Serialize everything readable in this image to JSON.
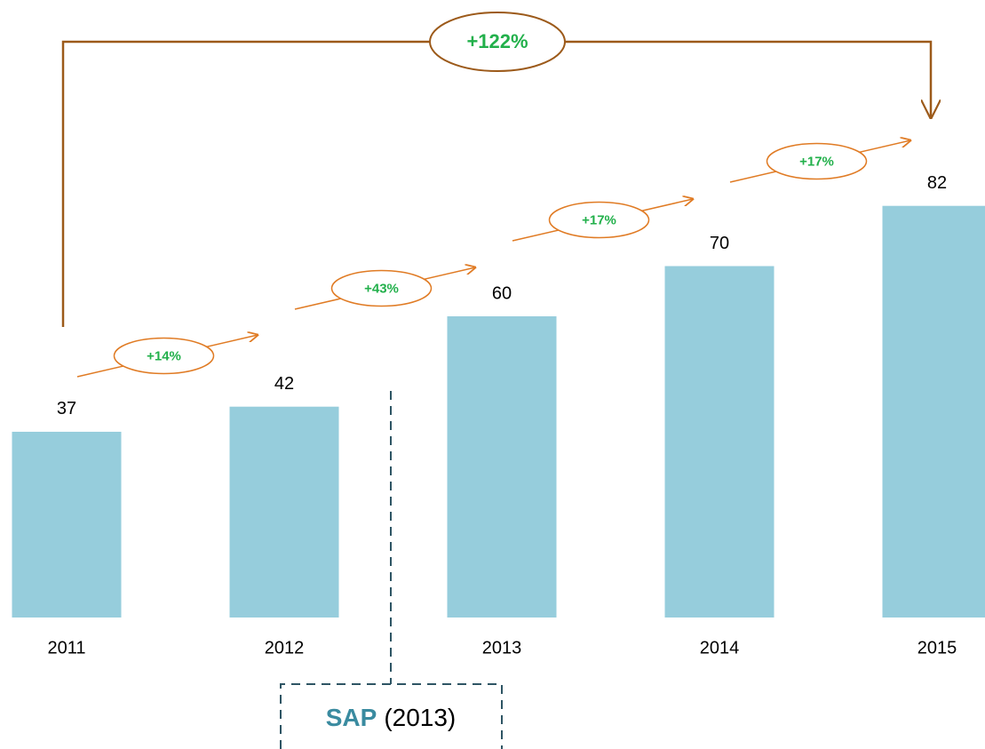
{
  "chart_data": {
    "type": "bar",
    "categories": [
      "2011",
      "2012",
      "2013",
      "2014",
      "2015"
    ],
    "values": [
      37,
      42,
      60,
      70,
      82
    ],
    "color": "#96cddc",
    "ylim": [
      0,
      100
    ],
    "growth_labels": [
      "+14%",
      "+43%",
      "+17%",
      "+17%"
    ],
    "total_growth": "+122%",
    "event": {
      "name": "SAP",
      "year": "(2013)"
    }
  }
}
